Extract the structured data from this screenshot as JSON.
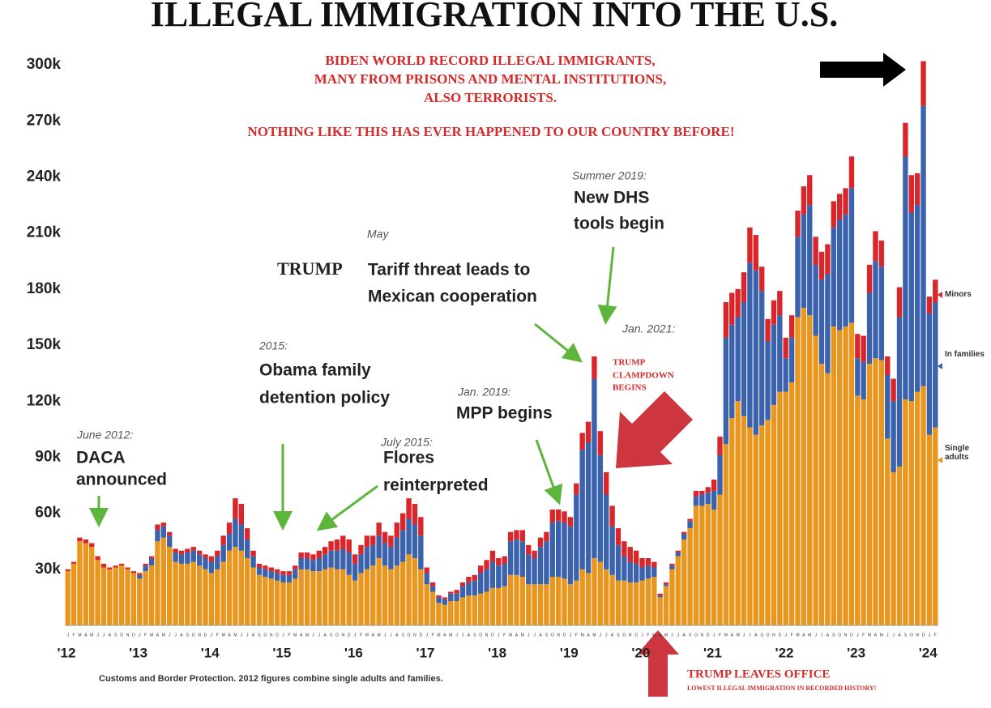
{
  "chart_data": {
    "type": "stacked-bar",
    "title": "ILLEGAL IMMIGRATION INTO THE U.S.",
    "source": "Customs and Border Protection. 2012 figures combine single adults and families.",
    "annotations": [
      "BIDEN WORLD RECORD ILLEGAL IMMIGRANTS,",
      "MANY FROM PRISONS AND MENTAL INSTITUTIONS,",
      "ALSO TERRORISTS.",
      "NOTHING LIKE THIS HAS EVER HAPPENED TO OUR COUNTRY BEFORE!",
      "Summer 2019:",
      "New DHS",
      "tools begin",
      "May",
      "TRUMP",
      "Tariff threat leads to",
      "Mexican cooperation",
      "Jan. 2021:",
      "TRUMP",
      "CLAMPDOWN",
      "BEGINS",
      "2015:",
      "Obama family",
      "detention policy",
      "Jan. 2019:",
      "MPP begins",
      "June 2012:",
      "DACA",
      "announced",
      "July 2015:",
      "Flores",
      "reinterpreted",
      "TRUMP LEAVES OFFICE",
      "LOWEST ILLEGAL IMMIGRATION IN RECORDED HISTORY!"
    ],
    "year_labels": [
      "'12",
      "'13",
      "'14",
      "'15",
      "'16",
      "'17",
      "'18",
      "'19",
      "'20",
      "'21",
      "'22",
      "'23",
      "'24"
    ],
    "categories": [
      "J",
      "F",
      "M",
      "A",
      "M",
      "J",
      "J",
      "A",
      "S",
      "O",
      "N",
      "D",
      "J",
      "F",
      "M",
      "A",
      "M",
      "J",
      "J",
      "A",
      "S",
      "O",
      "N",
      "D",
      "J",
      "F",
      "M",
      "A",
      "M",
      "J",
      "J",
      "A",
      "S",
      "O",
      "N",
      "D",
      "J",
      "F",
      "M",
      "A",
      "M",
      "J",
      "J",
      "A",
      "S",
      "O",
      "N",
      "D",
      "J",
      "F",
      "M",
      "A",
      "M",
      "J",
      "J",
      "A",
      "S",
      "O",
      "N",
      "D",
      "J",
      "F",
      "M",
      "A",
      "M",
      "J",
      "J",
      "A",
      "S",
      "O",
      "N",
      "D",
      "J",
      "F",
      "M",
      "A",
      "M",
      "J",
      "J",
      "A",
      "S",
      "O",
      "N",
      "D",
      "J",
      "F",
      "M",
      "A",
      "M",
      "J",
      "J",
      "A",
      "S",
      "O",
      "N",
      "D",
      "J",
      "F",
      "M",
      "A",
      "M",
      "J",
      "J",
      "A",
      "S",
      "O",
      "N",
      "D",
      "J",
      "F",
      "M",
      "A",
      "M",
      "J",
      "J",
      "A",
      "S",
      "O",
      "N",
      "D",
      "J",
      "F",
      "M",
      "A",
      "M",
      "J",
      "J",
      "A",
      "S",
      "O",
      "N",
      "D",
      "J",
      "F",
      "M",
      "A",
      "M",
      "J",
      "J",
      "A",
      "S",
      "O",
      "N",
      "D",
      "J",
      "F"
    ],
    "series": [
      {
        "name": "Single adults",
        "color": "#e8961e",
        "values": [
          29000,
          33000,
          45000,
          44000,
          42000,
          35000,
          31000,
          30000,
          31000,
          32000,
          30000,
          28000,
          25000,
          29000,
          32000,
          45000,
          47000,
          42000,
          34000,
          33000,
          33000,
          34000,
          32000,
          30000,
          28000,
          30000,
          34000,
          40000,
          42000,
          40000,
          36000,
          31000,
          27000,
          26000,
          25000,
          24000,
          23000,
          23000,
          25000,
          30000,
          30000,
          29000,
          29000,
          30000,
          31000,
          30000,
          30000,
          27000,
          24000,
          28000,
          30000,
          32000,
          36000,
          32000,
          30000,
          32000,
          34000,
          38000,
          36000,
          30000,
          22000,
          18000,
          12000,
          11000,
          13000,
          13000,
          15000,
          16000,
          16000,
          17000,
          18000,
          20000,
          20000,
          21000,
          27000,
          27000,
          26000,
          22000,
          22000,
          22000,
          22000,
          26000,
          26000,
          25000,
          22000,
          24000,
          30000,
          28000,
          36000,
          34000,
          30000,
          27000,
          24000,
          24000,
          23000,
          23000,
          24000,
          25000,
          26000,
          15000,
          21000,
          30000,
          37000,
          46000,
          52000,
          64000,
          64000,
          65000,
          62000,
          70000,
          97000,
          111000,
          120000,
          112000,
          106000,
          102000,
          107000,
          110000,
          118000,
          125000,
          125000,
          130000,
          165000,
          170000,
          166000,
          155000,
          140000,
          135000,
          160000,
          158000,
          160000,
          162000,
          123000,
          121000,
          140000,
          143000,
          142000,
          100000,
          82000,
          85000,
          121000,
          120000,
          125000,
          128000,
          102000,
          106000
        ]
      },
      {
        "name": "In families",
        "color": "#3a62ad",
        "values": [
          0,
          0,
          0,
          0,
          0,
          0,
          0,
          0,
          0,
          0,
          0,
          0,
          2000,
          3000,
          4000,
          6000,
          6000,
          6000,
          5000,
          5000,
          6000,
          6000,
          6000,
          6000,
          6000,
          7000,
          9000,
          9000,
          15000,
          14000,
          10000,
          6000,
          4000,
          4000,
          4000,
          4000,
          4000,
          4000,
          5000,
          6000,
          6000,
          6000,
          7000,
          8000,
          9000,
          10000,
          11000,
          12000,
          9000,
          10000,
          12000,
          11000,
          12000,
          12000,
          12000,
          15000,
          17000,
          19000,
          18000,
          18000,
          6000,
          3000,
          3000,
          3000,
          4000,
          4000,
          6000,
          7000,
          8000,
          11000,
          12000,
          14000,
          12000,
          12000,
          18000,
          19000,
          19000,
          16000,
          14000,
          20000,
          23000,
          29000,
          30000,
          30000,
          31000,
          46000,
          64000,
          70000,
          96000,
          57000,
          40000,
          26000,
          19000,
          13000,
          11000,
          10000,
          7000,
          7000,
          5000,
          1000,
          1000,
          2000,
          2000,
          3000,
          4000,
          5000,
          6000,
          6000,
          10000,
          21000,
          57000,
          50000,
          45000,
          61000,
          88000,
          88000,
          72000,
          42000,
          43000,
          41000,
          18000,
          24000,
          43000,
          50000,
          59000,
          38000,
          45000,
          53000,
          53000,
          59000,
          60000,
          72000,
          20000,
          20000,
          38000,
          52000,
          50000,
          34000,
          38000,
          80000,
          130000,
          101000,
          100000,
          150000,
          65000,
          67000
        ]
      },
      {
        "name": "Minors",
        "color": "#d9262b",
        "values": [
          1000,
          1000,
          2000,
          2000,
          2000,
          2000,
          2000,
          1000,
          1000,
          1000,
          1000,
          1000,
          1000,
          1000,
          1000,
          3000,
          2000,
          2000,
          2000,
          2000,
          2000,
          2000,
          2000,
          2000,
          3000,
          3000,
          5000,
          6000,
          11000,
          11000,
          6000,
          3000,
          2000,
          2000,
          2000,
          2000,
          2000,
          2000,
          2000,
          3000,
          3000,
          3000,
          4000,
          4000,
          5000,
          6000,
          7000,
          7000,
          5000,
          5000,
          6000,
          5000,
          7000,
          6000,
          6000,
          8000,
          9000,
          11000,
          11000,
          10000,
          3000,
          2000,
          1000,
          1000,
          1000,
          2000,
          2000,
          3000,
          3000,
          4000,
          5000,
          6000,
          4000,
          4000,
          5000,
          5000,
          6000,
          5000,
          4000,
          5000,
          5000,
          7000,
          6000,
          6000,
          5000,
          6000,
          9000,
          11000,
          12000,
          13000,
          12000,
          11000,
          9000,
          8000,
          8000,
          7000,
          5000,
          4000,
          3000,
          1000,
          1000,
          1000,
          1000,
          1000,
          1000,
          3000,
          2000,
          3000,
          6000,
          10000,
          19000,
          17000,
          15000,
          16000,
          19000,
          19000,
          13000,
          12000,
          13000,
          13000,
          11000,
          12000,
          14000,
          15000,
          16000,
          15000,
          15000,
          16000,
          14000,
          14000,
          14000,
          17000,
          13000,
          14000,
          15000,
          16000,
          14000,
          10000,
          12000,
          16000,
          18000,
          20000,
          17000,
          24000,
          9000,
          12000
        ]
      }
    ],
    "ylim": [
      0,
      320000
    ],
    "yticks": [
      {
        "value": 30000,
        "label": "30k"
      },
      {
        "value": 60000,
        "label": "60k"
      },
      {
        "value": 90000,
        "label": "90k"
      },
      {
        "value": 120000,
        "label": "120k"
      },
      {
        "value": 150000,
        "label": "150k"
      },
      {
        "value": 180000,
        "label": "180k"
      },
      {
        "value": 210000,
        "label": "210k"
      },
      {
        "value": 240000,
        "label": "240k"
      },
      {
        "value": 270000,
        "label": "270k"
      },
      {
        "value": 300000,
        "label": "300k"
      }
    ]
  }
}
